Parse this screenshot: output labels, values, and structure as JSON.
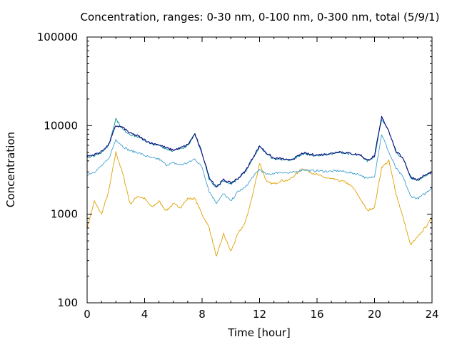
{
  "chart_data": {
    "type": "line",
    "title": "Concentration, ranges: 0-30 nm, 0-100 nm, 0-300 nm, total (5/9/1)",
    "xlabel": "Time [hour]",
    "ylabel": "Concentration",
    "xlim": [
      0,
      24
    ],
    "ylim": [
      100,
      100000
    ],
    "yscale": "log",
    "grid": false,
    "legend": "none",
    "x_ticks": [
      0,
      4,
      8,
      12,
      16,
      20,
      24
    ],
    "x_tick_labels": [
      "0",
      "4",
      "8",
      "12",
      "16",
      "20",
      "24"
    ],
    "y_ticks": [
      100,
      1000,
      10000,
      100000
    ],
    "y_tick_labels": [
      "100",
      "1000",
      "10000",
      "100000"
    ],
    "x": [
      0,
      0.5,
      1,
      1.5,
      2,
      2.5,
      3,
      3.5,
      4,
      4.5,
      5,
      5.5,
      6,
      6.5,
      7,
      7.5,
      8,
      8.5,
      9,
      9.5,
      10,
      10.5,
      11,
      11.5,
      12,
      12.5,
      13,
      13.5,
      14,
      14.5,
      15,
      15.5,
      16,
      16.5,
      17,
      17.5,
      18,
      18.5,
      19,
      19.5,
      20,
      20.5,
      21,
      21.5,
      22,
      22.5,
      23,
      23.5,
      24
    ],
    "series": [
      {
        "color": "#e0a000",
        "values": [
          700,
          1400,
          1000,
          1800,
          5000,
          2800,
          1300,
          1600,
          1500,
          1200,
          1400,
          1100,
          1300,
          1200,
          1500,
          1500,
          1000,
          700,
          330,
          600,
          380,
          600,
          800,
          1600,
          3800,
          2300,
          2200,
          2400,
          2400,
          2800,
          3300,
          3000,
          2800,
          2600,
          2500,
          2400,
          2300,
          2000,
          1500,
          1100,
          1200,
          3400,
          4000,
          1700,
          900,
          450,
          550,
          700,
          900
        ]
      },
      {
        "color": "#40a0d0",
        "values": [
          2800,
          3000,
          3500,
          4200,
          7000,
          5800,
          5200,
          5000,
          4600,
          4300,
          4200,
          3600,
          3800,
          3600,
          3800,
          4200,
          3400,
          1800,
          1350,
          1700,
          1400,
          1800,
          2000,
          2600,
          3200,
          2800,
          2900,
          3000,
          2900,
          3000,
          3200,
          3100,
          3100,
          3050,
          3050,
          3100,
          3000,
          2900,
          2800,
          2500,
          2700,
          8000,
          5000,
          3300,
          2600,
          1600,
          1500,
          1700,
          2000
        ]
      },
      {
        "color": "#009090",
        "values": [
          4400,
          4600,
          5000,
          6000,
          12000,
          9000,
          8000,
          7500,
          6800,
          6200,
          6000,
          5500,
          5200,
          5500,
          6000,
          8000,
          4800,
          2500,
          2000,
          2400,
          2200,
          2500,
          3000,
          4200,
          5800,
          4800,
          4200,
          4200,
          4000,
          4300,
          4800,
          4700,
          4600,
          4700,
          4800,
          5000,
          4900,
          4700,
          4600,
          4000,
          4500,
          12000,
          8500,
          5000,
          4200,
          2600,
          2400,
          2700,
          3000
        ]
      },
      {
        "color": "#0a0a80",
        "values": [
          4500,
          4700,
          5100,
          6100,
          10000,
          9500,
          8200,
          7700,
          6900,
          6300,
          6100,
          5600,
          5300,
          5600,
          6100,
          8000,
          4900,
          2600,
          2050,
          2450,
          2250,
          2550,
          3050,
          4250,
          5900,
          4900,
          4250,
          4250,
          4050,
          4350,
          4900,
          4750,
          4650,
          4750,
          4850,
          5100,
          4950,
          4800,
          4700,
          4050,
          4550,
          12500,
          8700,
          5100,
          4300,
          2650,
          2450,
          2750,
          3000
        ]
      }
    ]
  }
}
